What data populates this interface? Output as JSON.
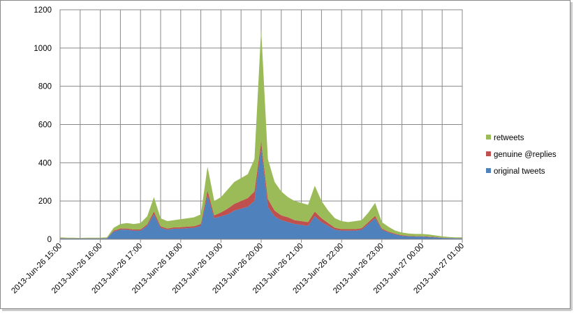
{
  "chart_data": {
    "type": "stacked-area",
    "categories": [
      "2013-Jun-26 15:00",
      null,
      null,
      null,
      null,
      null,
      "2013-Jun-26 16:00",
      null,
      null,
      null,
      null,
      null,
      "2013-Jun-26 17:00",
      null,
      null,
      null,
      null,
      null,
      "2013-Jun-26 18:00",
      null,
      null,
      null,
      null,
      null,
      "2013-Jun-26 19:00",
      null,
      null,
      null,
      null,
      null,
      "2013-Jun-26 20:00",
      null,
      null,
      null,
      null,
      null,
      "2013-Jun-26 21:00",
      null,
      null,
      null,
      null,
      null,
      "2013-Jun-26 22:00",
      null,
      null,
      null,
      null,
      null,
      "2013-Jun-26 23:00",
      null,
      null,
      null,
      null,
      null,
      "2013-Jun-27 00:00",
      null,
      null,
      null,
      null,
      null,
      "2013-Jun-27 01:00"
    ],
    "series": [
      {
        "name": "original tweets",
        "color": "#4f81bd",
        "values": [
          5,
          4,
          4,
          4,
          4,
          4,
          4,
          5,
          40,
          50,
          50,
          45,
          45,
          70,
          130,
          60,
          50,
          55,
          55,
          58,
          60,
          70,
          230,
          110,
          120,
          130,
          150,
          160,
          170,
          200,
          480,
          170,
          120,
          100,
          90,
          80,
          75,
          70,
          120,
          90,
          70,
          50,
          45,
          45,
          45,
          50,
          80,
          110,
          50,
          35,
          25,
          18,
          15,
          14,
          14,
          12,
          10,
          7,
          6,
          5,
          5
        ]
      },
      {
        "name": "genuine @replies",
        "color": "#c0504d",
        "values": [
          1,
          1,
          1,
          1,
          1,
          1,
          1,
          1,
          5,
          6,
          6,
          6,
          6,
          8,
          15,
          8,
          6,
          7,
          8,
          8,
          8,
          10,
          25,
          15,
          20,
          30,
          35,
          40,
          45,
          50,
          30,
          40,
          30,
          25,
          25,
          20,
          20,
          20,
          25,
          20,
          15,
          10,
          8,
          8,
          8,
          8,
          10,
          12,
          6,
          5,
          4,
          3,
          3,
          2,
          2,
          2,
          2,
          1,
          1,
          1,
          1
        ]
      },
      {
        "name": "retweets",
        "color": "#9bbb59",
        "values": [
          4,
          3,
          3,
          2,
          3,
          3,
          3,
          4,
          15,
          24,
          29,
          29,
          34,
          42,
          75,
          42,
          39,
          38,
          42,
          44,
          47,
          50,
          125,
          75,
          80,
          100,
          115,
          120,
          125,
          170,
          590,
          210,
          150,
          125,
          105,
          100,
          95,
          90,
          135,
          90,
          65,
          50,
          42,
          37,
          42,
          42,
          50,
          68,
          34,
          25,
          16,
          14,
          12,
          12,
          12,
          11,
          8,
          7,
          5,
          4,
          4
        ]
      }
    ],
    "ylim": [
      0,
      1200
    ],
    "yticks": [
      0,
      200,
      400,
      600,
      800,
      1000,
      1200
    ],
    "grid": true
  }
}
